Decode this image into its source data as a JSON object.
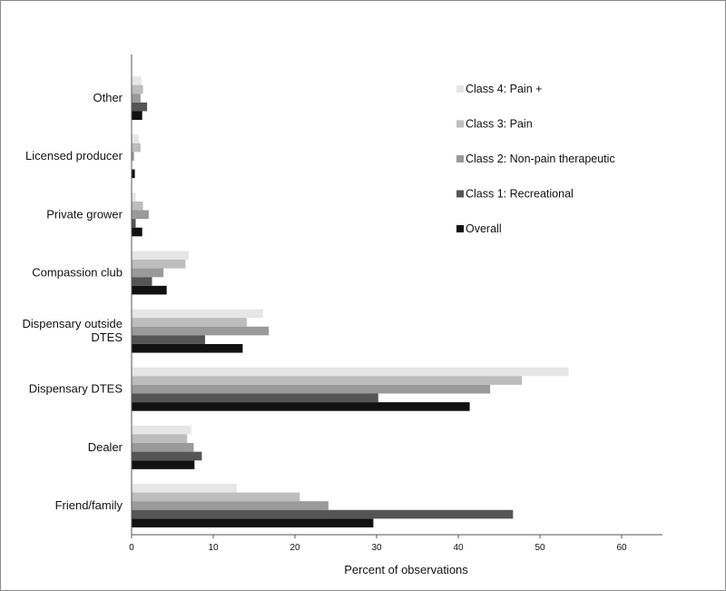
{
  "chart_data": {
    "type": "bar",
    "orientation": "horizontal",
    "title": "",
    "xlabel": "Percent of observations",
    "ylabel": "",
    "xlim": [
      0,
      65
    ],
    "xticks": [
      0,
      10,
      20,
      30,
      40,
      50,
      60
    ],
    "grid": false,
    "legend_position": "top-right",
    "categories": [
      "Other",
      "Licensed producer",
      "Private grower",
      "Compassion club",
      "Dispensary outside DTES",
      "Dispensary DTES",
      "Dealer",
      "Friend/family"
    ],
    "series": [
      {
        "name": "Class 4: Pain +",
        "color": "#e6e6e6",
        "values": [
          1.2,
          0.9,
          0.5,
          7.0,
          16.1,
          53.5,
          7.3,
          12.9
        ]
      },
      {
        "name": "Class 3: Pain",
        "color": "#bdbdbd",
        "values": [
          1.4,
          1.1,
          1.4,
          6.6,
          14.1,
          47.8,
          6.8,
          20.6
        ]
      },
      {
        "name": "Class 2: Non-pain therapeutic",
        "color": "#9a9a9a",
        "values": [
          1.1,
          0.3,
          2.1,
          3.9,
          16.8,
          43.9,
          7.6,
          24.1
        ]
      },
      {
        "name": "Class 1: Recreational",
        "color": "#555555",
        "values": [
          1.9,
          0.0,
          0.5,
          2.5,
          9.0,
          30.2,
          8.6,
          46.7
        ]
      },
      {
        "name": "Overall",
        "color": "#111111",
        "values": [
          1.3,
          0.4,
          1.3,
          4.3,
          13.6,
          41.4,
          7.7,
          29.6
        ]
      }
    ]
  }
}
